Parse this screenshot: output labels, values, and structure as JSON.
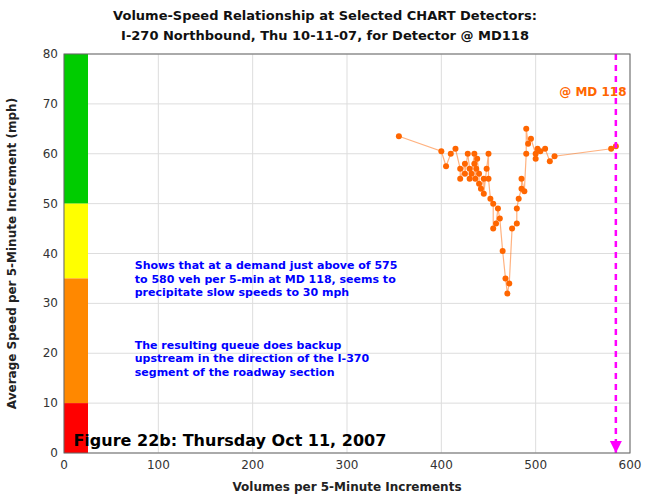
{
  "chart_data": {
    "type": "scatter",
    "title": "Volume-Speed Relationship at Selected CHART Detectors:",
    "subtitle": "I-270 Northbound, Thu 10-11-07, for Detector @ MD118",
    "x_label": "Volumes per 5-Minute Increments",
    "y_label": "Average Speed per 5-Minute Increment (mph)",
    "xlim": [
      0,
      600
    ],
    "ylim": [
      0,
      80
    ],
    "xticks": [
      0,
      100,
      200,
      300,
      400,
      500,
      600
    ],
    "yticks": [
      0,
      10,
      20,
      30,
      40,
      50,
      60,
      70,
      80
    ],
    "grid": true,
    "color": "#FF6600",
    "marker": "circle",
    "line_style": "solid",
    "x": [
      355,
      400,
      405,
      410,
      415,
      420,
      420,
      425,
      425,
      428,
      430,
      430,
      432,
      435,
      435,
      436,
      437,
      438,
      440,
      440,
      442,
      445,
      445,
      448,
      450,
      450,
      452,
      455,
      455,
      458,
      460,
      462,
      465,
      468,
      470,
      472,
      475,
      480,
      480,
      482,
      485,
      485,
      488,
      490,
      490,
      492,
      495,
      500,
      500,
      502,
      505,
      510,
      515,
      520,
      580,
      585
    ],
    "values": [
      63.5,
      60.5,
      57.5,
      60.0,
      61.0,
      57.0,
      55.0,
      58.0,
      56.0,
      60.0,
      57.0,
      55.0,
      56.0,
      60.0,
      58.0,
      55.0,
      57.0,
      59.0,
      56.0,
      54.0,
      53.0,
      55.0,
      52.0,
      57.0,
      60.0,
      55.0,
      51.0,
      50.0,
      45.0,
      46.0,
      49.0,
      47.0,
      40.5,
      35.0,
      32.0,
      34.0,
      45.0,
      46.0,
      49.0,
      51.0,
      53.0,
      55.0,
      52.5,
      60.0,
      65.0,
      62.0,
      63.0,
      60.0,
      59.0,
      61.0,
      60.5,
      61.0,
      58.5,
      59.5,
      61.0,
      61.5
    ],
    "bands": [
      {
        "y0": 50,
        "y1": 80,
        "color": "#00CC00"
      },
      {
        "y0": 35,
        "y1": 50,
        "color": "#FFFF00"
      },
      {
        "y0": 10,
        "y1": 35,
        "color": "#FF8800"
      },
      {
        "y0": 0,
        "y1": 10,
        "color": "#FF0000"
      }
    ],
    "reference_lines": [
      {
        "x": 585,
        "color": "#FF00FF"
      }
    ],
    "annotations": [
      {
        "text": "@ MD 118",
        "x": 525,
        "y": 71.5,
        "color": "#FF6600"
      },
      {
        "text": "Shows that at a demand just above of 575\nto 580 veh per 5-min at MD 118, seems to\nprecipitate slow speeds to 30 mph",
        "x": 75,
        "y": 39,
        "color": "#0000FF"
      },
      {
        "text": "The resulting queue does backup\nupstream in the direction of the I-370\nsegment of the roadway section",
        "x": 75,
        "y": 23,
        "color": "#0000FF"
      }
    ],
    "figure_label": {
      "text": "Figure 22b: Thursday Oct 11, 2007",
      "x": 10,
      "y": 1
    }
  }
}
